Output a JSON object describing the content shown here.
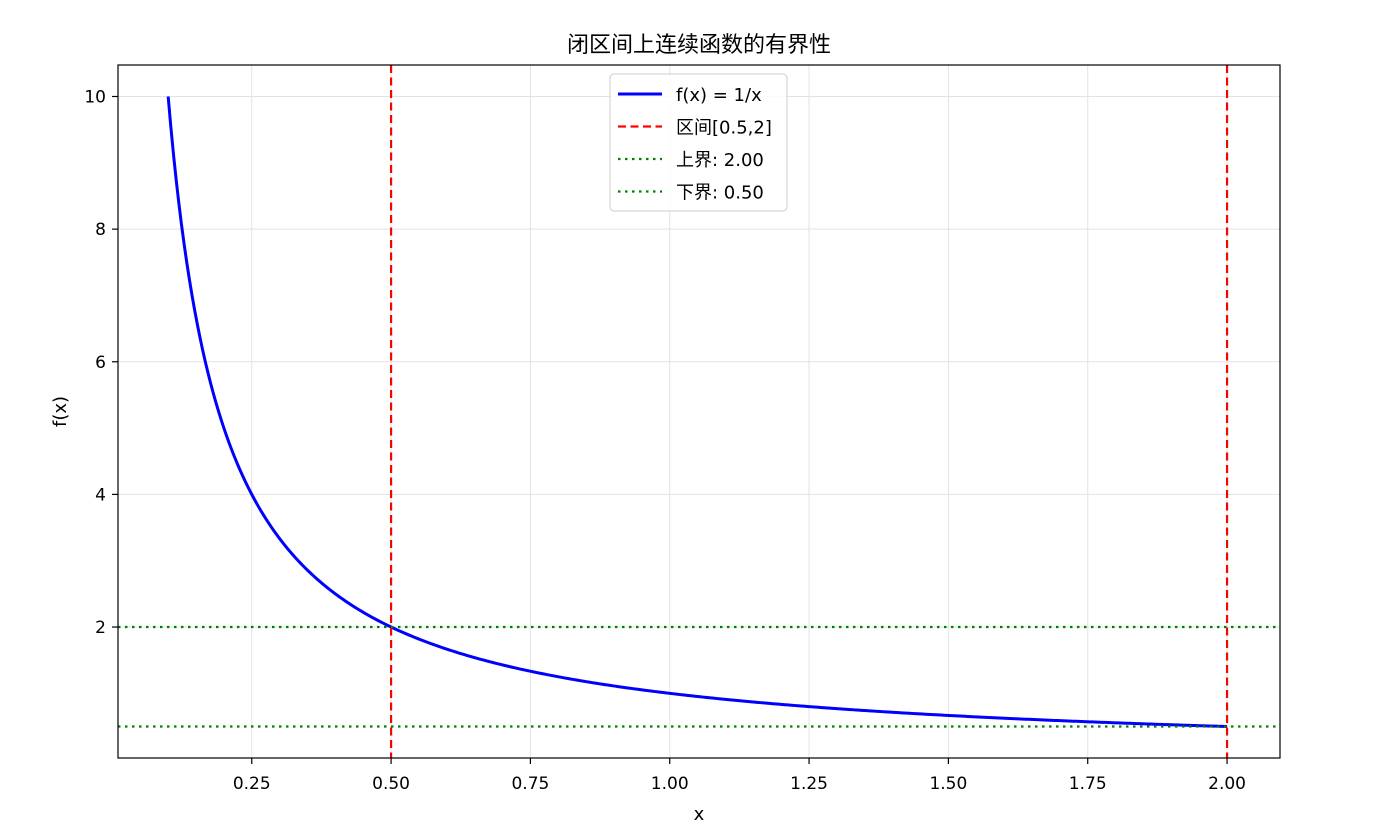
{
  "chart_data": {
    "type": "line",
    "title": "闭区间上连续函数的有界性",
    "xlabel": "x",
    "ylabel": "f(x)",
    "xlim": [
      0.01,
      2.095
    ],
    "ylim": [
      0.025,
      10.475
    ],
    "grid": true,
    "legend_position": "top-center",
    "x_ticks": [
      0.25,
      0.5,
      0.75,
      1.0,
      1.25,
      1.5,
      1.75,
      2.0
    ],
    "x_tick_labels": [
      "0.25",
      "0.50",
      "0.75",
      "1.00",
      "1.25",
      "1.50",
      "1.75",
      "2.00"
    ],
    "y_ticks": [
      2,
      4,
      6,
      8,
      10
    ],
    "y_tick_labels": [
      "2",
      "4",
      "6",
      "8",
      "10"
    ],
    "series": [
      {
        "name": "f(x) = 1/x",
        "function": "1/x",
        "x_range": [
          0.1,
          2.0
        ],
        "color": "#0000ff",
        "style": "solid",
        "x": [
          0.1,
          0.125,
          0.15,
          0.175,
          0.2,
          0.25,
          0.3,
          0.35,
          0.4,
          0.45,
          0.5,
          0.6,
          0.7,
          0.8,
          0.9,
          1.0,
          1.25,
          1.5,
          1.75,
          2.0
        ],
        "y": [
          10.0,
          8.0,
          6.67,
          5.71,
          5.0,
          4.0,
          3.33,
          2.86,
          2.5,
          2.22,
          2.0,
          1.67,
          1.43,
          1.25,
          1.11,
          1.0,
          0.8,
          0.67,
          0.57,
          0.5
        ]
      }
    ],
    "vertical_lines": [
      {
        "name": "区间[0.5,2]",
        "x": [
          0.5,
          2.0
        ],
        "color": "#ff0000",
        "style": "dashed"
      }
    ],
    "horizontal_lines": [
      {
        "name": "上界: 2.00",
        "y": 2.0,
        "color": "#008000",
        "style": "dotted"
      },
      {
        "name": "下界: 0.50",
        "y": 0.5,
        "color": "#008000",
        "style": "dotted"
      }
    ]
  }
}
